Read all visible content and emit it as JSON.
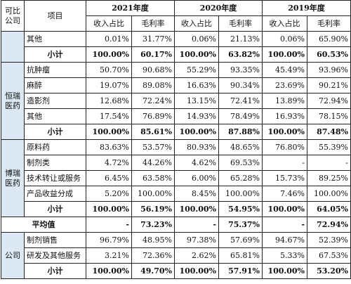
{
  "headers": {
    "company": "可比\n公司",
    "item": "项目",
    "years": [
      "2021年度",
      "2020年度",
      "2019年度"
    ],
    "sub": [
      "收入占比",
      "毛利率"
    ]
  },
  "groups": [
    {
      "company": "",
      "rows": [
        {
          "item": "其他",
          "vals": [
            "0.01%",
            "31.77%",
            "0.06%",
            "21.13%",
            "0.06%",
            "65.90%"
          ]
        }
      ],
      "subtotal": {
        "label": "小计",
        "vals": [
          "100.00%",
          "60.17%",
          "100.00%",
          "63.82%",
          "100.00%",
          "60.53%"
        ]
      }
    },
    {
      "company": "恒瑞\n医药",
      "rows": [
        {
          "item": "抗肿瘤",
          "vals": [
            "50.70%",
            "90.68%",
            "55.29%",
            "93.35%",
            "45.49%",
            "93.96%"
          ]
        },
        {
          "item": "麻醉",
          "vals": [
            "19.07%",
            "89.08%",
            "16.63%",
            "90.34%",
            "23.69%",
            "90.21%"
          ]
        },
        {
          "item": "造影剂",
          "vals": [
            "12.68%",
            "72.24%",
            "13.15%",
            "72.41%",
            "13.89%",
            "72.94%"
          ]
        },
        {
          "item": "其他",
          "vals": [
            "17.54%",
            "76.89%",
            "14.93%",
            "78.49%",
            "16.93%",
            "78.15%"
          ]
        }
      ],
      "subtotal": {
        "label": "小计",
        "vals": [
          "100.00%",
          "85.61%",
          "100.00%",
          "87.88%",
          "100.00%",
          "87.48%"
        ]
      }
    },
    {
      "company": "博瑞\n医药",
      "rows": [
        {
          "item": "原料药",
          "vals": [
            "83.63%",
            "53.57%",
            "80.93%",
            "48.65%",
            "76.80%",
            "55.39%"
          ]
        },
        {
          "item": "制剂类",
          "vals": [
            "4.72%",
            "44.26%",
            "4.62%",
            "69.53%",
            "-",
            "-"
          ]
        },
        {
          "item": "技术转让或服务",
          "vals": [
            "6.45%",
            "63.58%",
            "6.00%",
            "65.28%",
            "15.73%",
            "89.25%"
          ]
        },
        {
          "item": "产品收益分成",
          "vals": [
            "5.20%",
            "100.00%",
            "8.45%",
            "100.00%",
            "7.46%",
            "100.00%"
          ]
        }
      ],
      "subtotal": {
        "label": "小计",
        "vals": [
          "100.00%",
          "56.19%",
          "100.00%",
          "54.95%",
          "100.00%",
          "64.05%"
        ]
      }
    }
  ],
  "average": {
    "label": "平均值",
    "vals": [
      "-",
      "73.23%",
      "-",
      "75.37%",
      "-",
      "72.94%"
    ]
  },
  "company_group": {
    "company": "公司",
    "rows": [
      {
        "item": "制剂销售",
        "vals": [
          "96.79%",
          "48.95%",
          "97.38%",
          "57.69%",
          "94.67%",
          "52.39%"
        ]
      },
      {
        "item": "研发及其他服务",
        "vals": [
          "3.21%",
          "72.36%",
          "2.62%",
          "65.81%",
          "5.33%",
          "67.53%"
        ]
      }
    ],
    "subtotal": {
      "label": "小计",
      "vals": [
        "100.00%",
        "49.70%",
        "100.00%",
        "57.91%",
        "100.00%",
        "53.20%"
      ]
    }
  }
}
